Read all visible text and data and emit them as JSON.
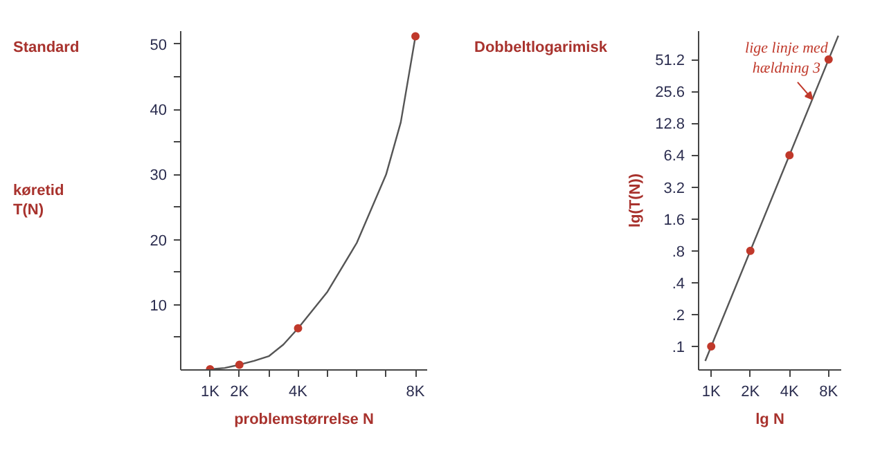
{
  "chart_data": [
    {
      "type": "line",
      "title": "Standard",
      "ylabel": "køretid\nT(N)",
      "xlabel": "problemstørrelse N",
      "series": [
        {
          "color": "#555555",
          "x": [
            1000,
            1500,
            2000,
            2500,
            3000,
            3500,
            4000,
            5000,
            6000,
            7000,
            7500,
            8000
          ],
          "values": [
            0.1,
            0.3,
            0.8,
            1.4,
            2.1,
            3.9,
            6.4,
            12,
            19.5,
            30,
            38,
            51.2
          ]
        },
        {
          "type": "scatter",
          "color": "#c0392b",
          "marker": "circle",
          "x": [
            1000,
            2000,
            4000,
            8000
          ],
          "values": [
            0.1,
            0.8,
            6.4,
            51.2
          ]
        }
      ],
      "xlim": [
        0,
        8400
      ],
      "ylim": [
        0,
        52
      ],
      "xticks": [
        {
          "value": 1000,
          "label": "1K"
        },
        {
          "value": 2000,
          "label": "2K"
        },
        {
          "value": 3000,
          "label": null
        },
        {
          "value": 4000,
          "label": "4K"
        },
        {
          "value": 5000,
          "label": null
        },
        {
          "value": 6000,
          "label": null
        },
        {
          "value": 7000,
          "label": null
        },
        {
          "value": 8000,
          "label": "8K"
        }
      ],
      "yticks": [
        {
          "value": 5,
          "label": null
        },
        10,
        {
          "value": 15,
          "label": null
        },
        20,
        {
          "value": 25,
          "label": null
        },
        30,
        {
          "value": 35,
          "label": null
        },
        40,
        {
          "value": 45,
          "label": null
        },
        50
      ],
      "grid": false
    },
    {
      "type": "line",
      "title": "Dobbeltlogarimisk",
      "ylabel": "lg(T(N))",
      "xlabel": "lg N",
      "log": "xy",
      "series": [
        {
          "color": "#555555",
          "x": [
            900,
            9500
          ],
          "values": [
            0.073,
            86
          ]
        },
        {
          "type": "scatter",
          "color": "#c0392b",
          "marker": "circle",
          "x": [
            1000,
            2000,
            4000,
            8000
          ],
          "values": [
            0.1,
            0.8,
            6.4,
            51.2
          ]
        }
      ],
      "xlim": [
        800,
        10000
      ],
      "ylim": [
        0.06,
        95
      ],
      "xticks": [
        {
          "value": 1000,
          "label": "1K"
        },
        {
          "value": 2000,
          "label": "2K"
        },
        {
          "value": 4000,
          "label": "4K"
        },
        {
          "value": 8000,
          "label": "8K"
        }
      ],
      "yticks": [
        {
          "value": 0.1,
          "label": ".1"
        },
        {
          "value": 0.2,
          "label": ".2"
        },
        {
          "value": 0.4,
          "label": ".4"
        },
        {
          "value": 0.8,
          "label": ".8"
        },
        1.6,
        3.2,
        6.4,
        12.8,
        25.6,
        51.2
      ],
      "annotations": [
        {
          "text": "lige linje med\nhældning 3",
          "x": 6000,
          "y": 21.6
        }
      ],
      "grid": false
    }
  ]
}
